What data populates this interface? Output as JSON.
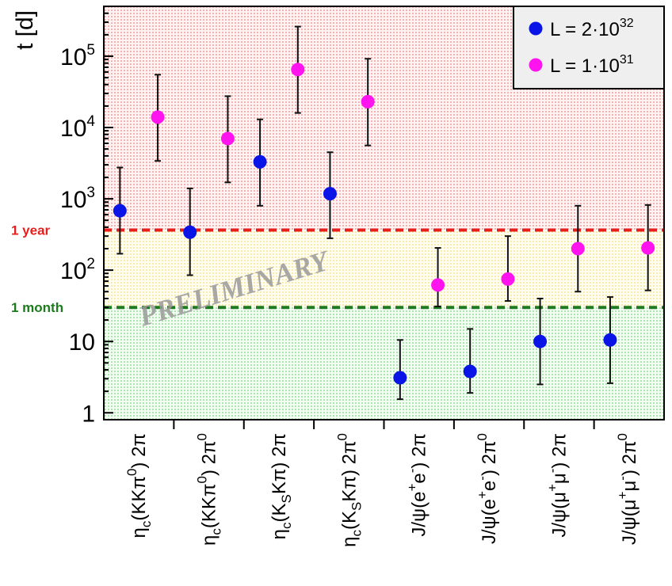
{
  "chart_data": {
    "type": "scatter",
    "ylabel": "t [d]",
    "yscale": "log",
    "ylim": [
      0.8,
      500000
    ],
    "ytick_labels": [
      {
        "value": 1,
        "label": "1",
        "exp": ""
      },
      {
        "value": 10,
        "label": "10",
        "exp": ""
      },
      {
        "value": 100,
        "label": "10",
        "exp": "2"
      },
      {
        "value": 1000,
        "label": "10",
        "exp": "3"
      },
      {
        "value": 10000,
        "label": "10",
        "exp": "4"
      },
      {
        "value": 100000,
        "label": "10",
        "exp": "5"
      }
    ],
    "categories": [
      "ηc(KKπ0) 2π",
      "ηc(KKπ0) 2π0",
      "ηc(KSKπ) 2π",
      "ηc(KSKπ) 2π0",
      "J/ψ(e+e-) 2π",
      "J/ψ(e+e-) 2π0",
      "J/ψ(μ+μ-) 2π",
      "J/ψ(μ+μ-) 2π0"
    ],
    "category_labels": [
      [
        {
          "t": "η"
        },
        {
          "t": "c",
          "s": "sub"
        },
        {
          "t": "(KKπ"
        },
        {
          "t": "0",
          "s": "sup"
        },
        {
          "t": ") 2π"
        }
      ],
      [
        {
          "t": "η"
        },
        {
          "t": "c",
          "s": "sub"
        },
        {
          "t": "(KKπ"
        },
        {
          "t": "0",
          "s": "sup"
        },
        {
          "t": ") 2π"
        },
        {
          "t": "0",
          "s": "sup"
        }
      ],
      [
        {
          "t": "η"
        },
        {
          "t": "c",
          "s": "sub"
        },
        {
          "t": "(K"
        },
        {
          "t": "S",
          "s": "sub"
        },
        {
          "t": "Kπ) 2π"
        }
      ],
      [
        {
          "t": "η"
        },
        {
          "t": "c",
          "s": "sub"
        },
        {
          "t": "(K"
        },
        {
          "t": "S",
          "s": "sub"
        },
        {
          "t": "Kπ) 2π"
        },
        {
          "t": "0",
          "s": "sup"
        }
      ],
      [
        {
          "t": "J/ψ(e"
        },
        {
          "t": "+",
          "s": "sup"
        },
        {
          "t": "e"
        },
        {
          "t": "-",
          "s": "sup"
        },
        {
          "t": ") 2π"
        }
      ],
      [
        {
          "t": "J/ψ(e"
        },
        {
          "t": "+",
          "s": "sup"
        },
        {
          "t": "e"
        },
        {
          "t": "-",
          "s": "sup"
        },
        {
          "t": ") 2π"
        },
        {
          "t": "0",
          "s": "sup"
        }
      ],
      [
        {
          "t": "J/ψ(μ"
        },
        {
          "t": "+",
          "s": "sup"
        },
        {
          "t": "μ"
        },
        {
          "t": "-",
          "s": "sup"
        },
        {
          "t": ") 2π"
        }
      ],
      [
        {
          "t": "J/ψ(μ"
        },
        {
          "t": "+",
          "s": "sup"
        },
        {
          "t": "μ"
        },
        {
          "t": "-",
          "s": "sup"
        },
        {
          "t": ") 2π"
        },
        {
          "t": "0",
          "s": "sup"
        }
      ]
    ],
    "series": [
      {
        "name": "L = 2·10^32",
        "legend_base": "L = 2·10",
        "legend_exp": "32",
        "color": "#0a14e6",
        "values": [
          680,
          340,
          3300,
          1180,
          3.1,
          3.8,
          10,
          10.5
        ],
        "err_low": [
          170,
          85,
          800,
          280,
          1.55,
          1.9,
          2.5,
          2.6
        ],
        "err_high": [
          2750,
          1400,
          13000,
          4500,
          10.5,
          15,
          40,
          42
        ]
      },
      {
        "name": "L = 1·10^31",
        "legend_base": "L = 1·10",
        "legend_exp": "31",
        "color": "#ff14f0",
        "values": [
          14000,
          7000,
          65000,
          23000,
          62,
          75,
          200,
          205
        ],
        "err_low": [
          3400,
          1700,
          16000,
          5600,
          31,
          37,
          50,
          52
        ],
        "err_high": [
          55000,
          27500,
          260000,
          92000,
          205,
          300,
          800,
          820
        ]
      }
    ],
    "reference_lines": [
      {
        "label": "1 year",
        "value": 365,
        "color": "#e81e1e"
      },
      {
        "label": "1 month",
        "value": 30,
        "color": "#1e7a1e"
      }
    ],
    "bands": [
      {
        "from": 365,
        "to": 500000,
        "color": "#e85a5a"
      },
      {
        "from": 30,
        "to": 365,
        "color": "#f0d24a"
      },
      {
        "from": 0.8,
        "to": 30,
        "color": "#4ec84e"
      }
    ],
    "annotation": "PRELIMINARY",
    "legend_position": "top-right",
    "grid": false
  }
}
